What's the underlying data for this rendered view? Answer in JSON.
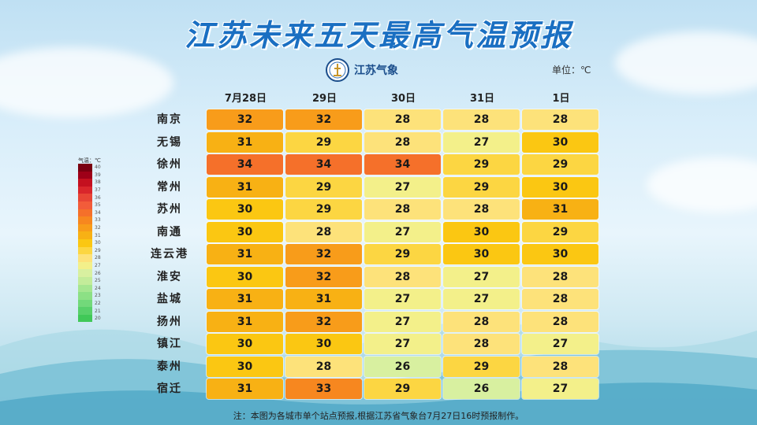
{
  "title": "江苏未来五天最高气温预报",
  "logo_text": "江苏气象",
  "unit_label": "单位：℃",
  "legend": {
    "title": "气温：℃",
    "levels": [
      40,
      39,
      38,
      37,
      36,
      35,
      34,
      33,
      32,
      31,
      30,
      29,
      28,
      27,
      26,
      25,
      24,
      23,
      22,
      21,
      20
    ],
    "colors": {
      "40": "#7a0010",
      "39": "#9e0018",
      "38": "#c4101f",
      "37": "#d9262b",
      "36": "#e84535",
      "35": "#f25c3a",
      "34": "#f5702a",
      "33": "#f7871f",
      "32": "#f89c1a",
      "31": "#f8b114",
      "30": "#fbc712",
      "29": "#fcd642",
      "28": "#fde27a",
      "27": "#f3f08a",
      "26": "#d8f0a0",
      "25": "#c3ec9a",
      "24": "#a5e690",
      "23": "#8ce085",
      "22": "#72d97a",
      "21": "#58d06a",
      "20": "#40c858"
    }
  },
  "chart_data": {
    "type": "table",
    "title": "江苏未来五天最高气温预报",
    "unit": "℃",
    "columns": [
      "7月28日",
      "29日",
      "30日",
      "31日",
      "1日"
    ],
    "rows": [
      {
        "city": "南京",
        "values": [
          32,
          32,
          28,
          28,
          28
        ]
      },
      {
        "city": "无锡",
        "values": [
          31,
          29,
          28,
          27,
          30
        ]
      },
      {
        "city": "徐州",
        "values": [
          34,
          34,
          34,
          29,
          29
        ]
      },
      {
        "city": "常州",
        "values": [
          31,
          29,
          27,
          29,
          30
        ]
      },
      {
        "city": "苏州",
        "values": [
          30,
          29,
          28,
          28,
          31
        ]
      },
      {
        "city": "南通",
        "values": [
          30,
          28,
          27,
          30,
          29
        ]
      },
      {
        "city": "连云港",
        "values": [
          31,
          32,
          29,
          30,
          30
        ]
      },
      {
        "city": "淮安",
        "values": [
          30,
          32,
          28,
          27,
          28
        ]
      },
      {
        "city": "盐城",
        "values": [
          31,
          31,
          27,
          27,
          28
        ]
      },
      {
        "city": "扬州",
        "values": [
          31,
          32,
          27,
          28,
          28
        ]
      },
      {
        "city": "镇江",
        "values": [
          30,
          30,
          27,
          28,
          27
        ]
      },
      {
        "city": "泰州",
        "values": [
          30,
          28,
          26,
          29,
          28
        ]
      },
      {
        "city": "宿迁",
        "values": [
          31,
          33,
          29,
          26,
          27
        ]
      }
    ]
  },
  "note": "注：本图为各城市单个站点预报,根据江苏省气象台7月27日16时预报制作。"
}
